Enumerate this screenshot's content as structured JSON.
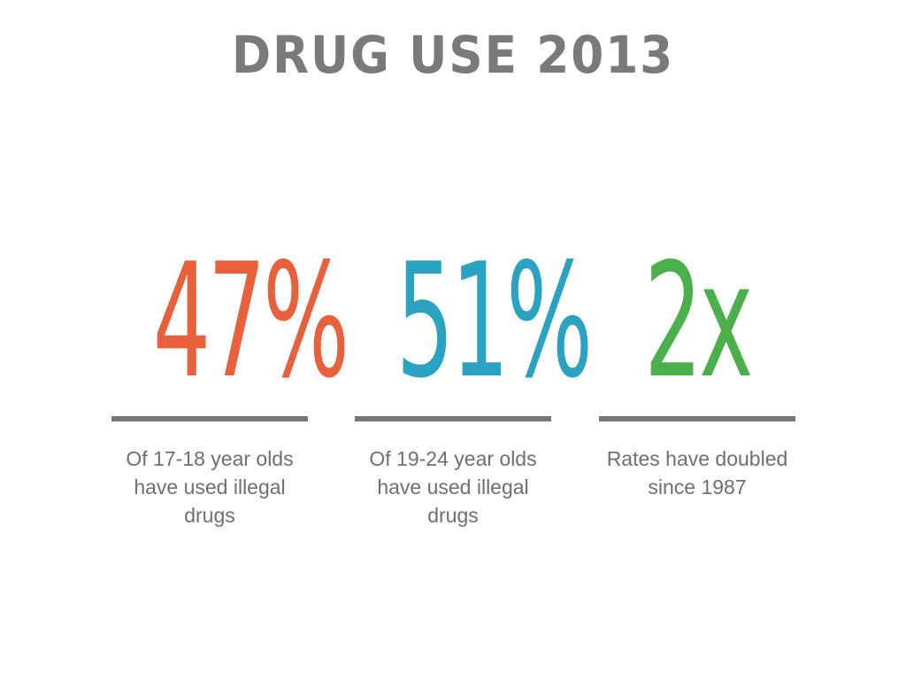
{
  "title": "DRUG USE 2013",
  "stats": [
    {
      "value": "47%",
      "color": "#e8603c",
      "description": "Of 17-18 year olds have used illegal drugs"
    },
    {
      "value": "51%",
      "color": "#2aa3c2",
      "description": "Of 19-24 year olds have used illegal drugs"
    },
    {
      "value": "2x",
      "color": "#4bb04b",
      "description": "Rates have doubled since 1987"
    }
  ]
}
